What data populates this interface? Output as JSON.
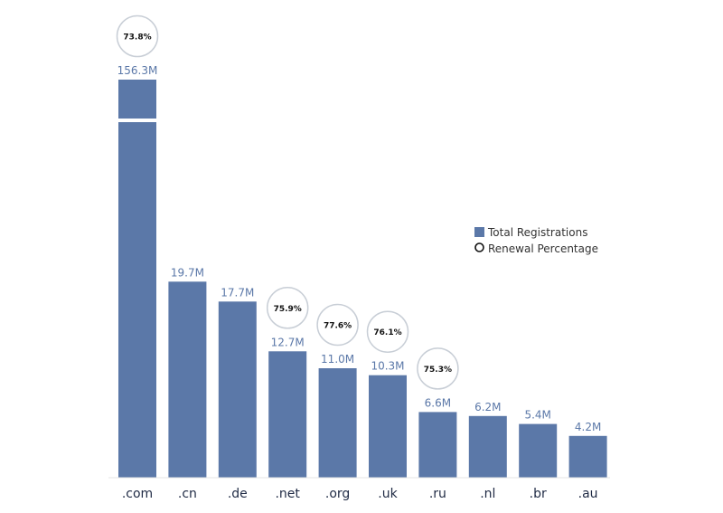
{
  "chart_data": {
    "type": "bar",
    "title": "",
    "xlabel": "",
    "ylabel": "",
    "categories": [
      ".com",
      ".cn",
      ".de",
      ".net",
      ".org",
      ".uk",
      ".ru",
      ".nl",
      ".br",
      ".au"
    ],
    "series": [
      {
        "name": "Total Registrations",
        "values": [
          156.3,
          19.7,
          17.7,
          12.7,
          11.0,
          10.3,
          6.6,
          6.2,
          5.4,
          4.2
        ],
        "labels": [
          "156.3M",
          "19.7M",
          "17.7M",
          "12.7M",
          "11.0M",
          "10.3M",
          "6.6M",
          "6.2M",
          "5.4M",
          "4.2M"
        ]
      },
      {
        "name": "Renewal Percentage",
        "values": [
          73.8,
          null,
          null,
          75.9,
          77.6,
          76.1,
          75.3,
          null,
          null,
          null
        ],
        "labels": [
          "73.8%",
          null,
          null,
          "75.9%",
          "77.6%",
          "76.1%",
          "75.3%",
          null,
          null,
          null
        ]
      }
    ],
    "axis_break": {
      "category": ".com"
    },
    "legend_position": "right",
    "grid": false
  },
  "colors": {
    "bar": "#5b78a8",
    "circle_stroke": "#c8ced6",
    "label": "#5b78a8",
    "tick": "#1f2a44"
  }
}
